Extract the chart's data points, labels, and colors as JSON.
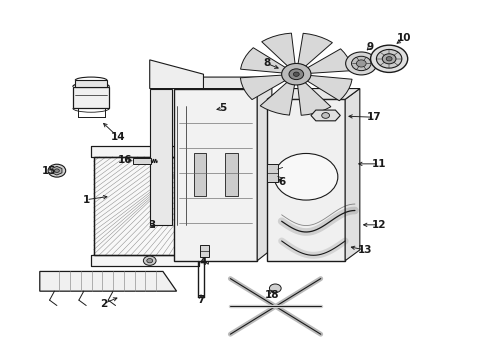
{
  "bg_color": "#ffffff",
  "line_color": "#1a1a1a",
  "figsize": [
    4.9,
    3.6
  ],
  "dpi": 100,
  "label_positions": {
    "1": [
      0.175,
      0.445,
      0.225,
      0.455
    ],
    "2": [
      0.21,
      0.155,
      0.245,
      0.175
    ],
    "3": [
      0.31,
      0.375,
      0.32,
      0.36
    ],
    "4": [
      0.415,
      0.27,
      0.42,
      0.29
    ],
    "5": [
      0.455,
      0.7,
      0.435,
      0.695
    ],
    "6": [
      0.575,
      0.495,
      0.565,
      0.51
    ],
    "7": [
      0.41,
      0.165,
      0.41,
      0.19
    ],
    "8": [
      0.545,
      0.825,
      0.575,
      0.808
    ],
    "9": [
      0.755,
      0.87,
      0.745,
      0.855
    ],
    "10": [
      0.825,
      0.895,
      0.805,
      0.875
    ],
    "11": [
      0.775,
      0.545,
      0.725,
      0.545
    ],
    "12": [
      0.775,
      0.375,
      0.735,
      0.375
    ],
    "13": [
      0.745,
      0.305,
      0.71,
      0.315
    ],
    "14": [
      0.24,
      0.62,
      0.205,
      0.665
    ],
    "15": [
      0.1,
      0.525,
      0.115,
      0.525
    ],
    "16": [
      0.255,
      0.555,
      0.275,
      0.555
    ],
    "17": [
      0.765,
      0.675,
      0.705,
      0.678
    ],
    "18": [
      0.555,
      0.18,
      0.555,
      0.195
    ]
  }
}
